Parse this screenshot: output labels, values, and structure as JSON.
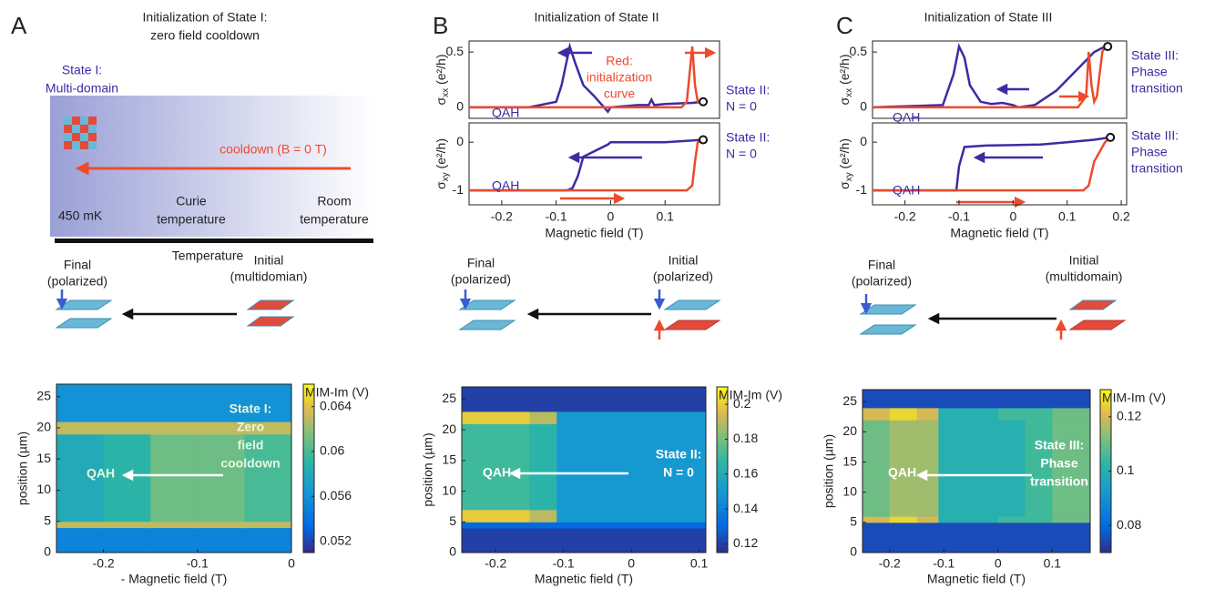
{
  "panels": {
    "A": {
      "letter": "A",
      "title": [
        "Initialization of State I:",
        "zero field cooldown"
      ],
      "state": [
        "State I:",
        "Multi-domain"
      ],
      "cooldown": "cooldown (B = 0 T)",
      "temps": [
        [
          "450 mK"
        ],
        [
          "Curie",
          "temperature"
        ],
        [
          "Room",
          "temperature"
        ]
      ],
      "axis": "Temperature",
      "final": [
        "Final",
        "(polarized)"
      ],
      "initial": [
        "Initial",
        "(multidomian)"
      ]
    },
    "B": {
      "letter": "B",
      "title": [
        "Initialization of State II"
      ],
      "final": [
        "Final",
        "(polarized)"
      ],
      "initial": [
        "Initial",
        "(polarized)"
      ]
    },
    "C": {
      "letter": "C",
      "title": [
        "Initialization of State III"
      ],
      "final": [
        "Final",
        "(polarized)"
      ],
      "initial": [
        "Initial",
        "(multidomain)"
      ]
    }
  },
  "chart_data": [
    {
      "type": "line",
      "ylabel": {
        "symbol": "σ",
        "sub": "xx",
        "unit": " (e²/h)"
      },
      "xlim": [
        -0.26,
        0.2
      ],
      "ylim": [
        -0.1,
        0.6
      ],
      "yticks": [
        0,
        0.5
      ],
      "series": [
        {
          "color": "#3f2aa3",
          "x": [
            0.17,
            0.15,
            0.1,
            0.08,
            0.075,
            0.07,
            0.05,
            0.0,
            -0.005,
            -0.03,
            -0.05,
            -0.065,
            -0.075,
            -0.09,
            -0.1,
            -0.15,
            -0.26
          ],
          "values": [
            0.05,
            0.04,
            0.03,
            0.02,
            0.07,
            0.02,
            0.02,
            0.0,
            -0.04,
            0.1,
            0.2,
            0.4,
            0.55,
            0.2,
            0.05,
            0.0,
            0.0
          ]
        },
        {
          "color": "#ee4a2c",
          "x": [
            -0.26,
            0.13,
            0.14,
            0.145,
            0.15,
            0.155,
            0.16,
            0.17
          ],
          "values": [
            0,
            0,
            0.05,
            0.3,
            0.55,
            0.2,
            0.05,
            0.05
          ]
        }
      ],
      "marker": [
        0.17,
        0.05
      ],
      "annotations": [
        {
          "text": [
            "QAH"
          ],
          "color": "#3f2aa3"
        },
        {
          "text": [
            "Red:",
            "initialization",
            "curve"
          ],
          "color": "#ee4a2c"
        },
        {
          "text": [
            "State II:",
            "N = 0"
          ],
          "color": "#3f2aa3"
        }
      ]
    },
    {
      "type": "line",
      "ylabel": {
        "symbol": "σ",
        "sub": "xy",
        "unit": " (e²/h)"
      },
      "xlabel": "Magnetic field (T)",
      "xlim": [
        -0.26,
        0.2
      ],
      "ylim": [
        -1.3,
        0.4
      ],
      "yticks": [
        -1,
        0
      ],
      "xticks": [
        -0.2,
        -0.1,
        0,
        0.1
      ],
      "series": [
        {
          "color": "#3f2aa3",
          "x": [
            0.17,
            0.1,
            0.0,
            -0.005,
            -0.05,
            -0.06,
            -0.07,
            -0.08,
            -0.26
          ],
          "values": [
            0.05,
            0.0,
            0.0,
            -0.05,
            -0.3,
            -0.7,
            -0.95,
            -1,
            -1
          ]
        },
        {
          "color": "#ee4a2c",
          "x": [
            -0.26,
            0.14,
            0.15,
            0.155,
            0.16,
            0.17
          ],
          "values": [
            -1,
            -1,
            -0.9,
            -0.4,
            0,
            0.05
          ]
        }
      ],
      "marker": [
        0.17,
        0.05
      ],
      "annotations": [
        {
          "text": [
            "QAH"
          ],
          "color": "#3f2aa3"
        },
        {
          "text": [
            "State II:",
            "N = 0"
          ],
          "color": "#3f2aa3"
        }
      ]
    },
    {
      "type": "line",
      "ylabel": {
        "symbol": "σ",
        "sub": "xx",
        "unit": " (e²/h)"
      },
      "xlim": [
        -0.26,
        0.21
      ],
      "ylim": [
        -0.1,
        0.6
      ],
      "yticks": [
        0,
        0.5
      ],
      "series": [
        {
          "color": "#3f2aa3",
          "x": [
            0.17,
            0.15,
            0.12,
            0.08,
            0.04,
            0.01,
            0,
            -0.02,
            -0.04,
            -0.06,
            -0.08,
            -0.09,
            -0.1,
            -0.11,
            -0.13,
            -0.26
          ],
          "values": [
            0.55,
            0.5,
            0.35,
            0.15,
            0.02,
            0,
            0.02,
            0.04,
            0.03,
            0.05,
            0.2,
            0.45,
            0.55,
            0.3,
            0.02,
            0
          ]
        },
        {
          "color": "#ee4a2c",
          "x": [
            -0.26,
            0.12,
            0.135,
            0.14,
            0.145,
            0.15,
            0.155,
            0.165,
            0.17,
            0.175
          ],
          "values": [
            0,
            0,
            0.1,
            0.5,
            0.2,
            0.05,
            0.1,
            0.5,
            0.55,
            0.55
          ]
        }
      ],
      "marker": [
        0.175,
        0.55
      ],
      "annotations": [
        {
          "text": [
            "QAH"
          ],
          "color": "#3f2aa3"
        },
        {
          "text": [
            "State III:",
            "Phase",
            "transition"
          ],
          "color": "#3f2aa3"
        }
      ]
    },
    {
      "type": "line",
      "ylabel": {
        "symbol": "σ",
        "sub": "xy",
        "unit": " (e²/h)"
      },
      "xlabel": "Magnetic field (T)",
      "xlim": [
        -0.26,
        0.21
      ],
      "ylim": [
        -1.3,
        0.4
      ],
      "yticks": [
        -1,
        0
      ],
      "xticks": [
        -0.2,
        -0.1,
        0,
        0.1,
        0.2
      ],
      "series": [
        {
          "color": "#3f2aa3",
          "x": [
            0.18,
            0.15,
            0.1,
            0.05,
            0,
            -0.05,
            -0.09,
            -0.1,
            -0.105,
            -0.26
          ],
          "values": [
            0.1,
            0.05,
            0.0,
            -0.05,
            -0.06,
            -0.07,
            -0.1,
            -0.5,
            -1,
            -1
          ]
        },
        {
          "color": "#ee4a2c",
          "x": [
            -0.26,
            0.13,
            0.14,
            0.15,
            0.16,
            0.17,
            0.18
          ],
          "values": [
            -1,
            -1,
            -0.9,
            -0.4,
            -0.2,
            0,
            0.1
          ]
        }
      ],
      "marker": [
        0.18,
        0.1
      ],
      "annotations": [
        {
          "text": [
            "QAH"
          ],
          "color": "#3f2aa3"
        },
        {
          "text": [
            "State III:",
            "Phase",
            "transition"
          ],
          "color": "#3f2aa3"
        }
      ]
    },
    {
      "type": "heatmap",
      "xlabel": "- Magnetic field (T)",
      "ylabel": "position (µm)",
      "xlim": [
        -0.25,
        0
      ],
      "ylim": [
        0,
        27
      ],
      "xticks": [
        -0.2,
        -0.1,
        0
      ],
      "yticks": [
        0,
        5,
        10,
        15,
        20,
        25
      ],
      "x_edges": [
        -0.25,
        -0.2,
        -0.15,
        -0.1,
        -0.05,
        0
      ],
      "y_edges": [
        0,
        4,
        5,
        19,
        21,
        27
      ],
      "z": [
        [
          0.055,
          0.055,
          0.055,
          0.055,
          0.055
        ],
        [
          0.063,
          0.063,
          0.063,
          0.063,
          0.063
        ],
        [
          0.058,
          0.059,
          0.061,
          0.061,
          0.06
        ],
        [
          0.063,
          0.063,
          0.063,
          0.063,
          0.063
        ],
        [
          0.056,
          0.056,
          0.056,
          0.056,
          0.056
        ]
      ],
      "zlim": [
        0.051,
        0.066
      ],
      "zticks": [
        0.052,
        0.056,
        0.06,
        0.064
      ],
      "colorbar_label": "MIM-Im (V)",
      "annotations": [
        {
          "text": [
            "QAH"
          ],
          "color": "#e8f7e0"
        },
        {
          "text": [
            "State I:",
            "Zero",
            "field",
            "cooldown"
          ],
          "color": "#e8f7e0"
        }
      ]
    },
    {
      "type": "heatmap",
      "xlabel": "Magnetic field (T)",
      "ylabel": "position (µm)",
      "xlim": [
        -0.25,
        0.11
      ],
      "ylim": [
        0,
        27
      ],
      "xticks": [
        -0.2,
        -0.1,
        0,
        0.1
      ],
      "yticks": [
        0,
        5,
        10,
        15,
        20,
        25
      ],
      "x_edges": [
        -0.25,
        -0.2,
        -0.15,
        -0.11,
        -0.1,
        0.0,
        0.11
      ],
      "y_edges": [
        0,
        4,
        5,
        7,
        21,
        23,
        27
      ],
      "z": [
        [
          0.12,
          0.12,
          0.12,
          0.12,
          0.12,
          0.12
        ],
        [
          0.13,
          0.13,
          0.13,
          0.13,
          0.13,
          0.13
        ],
        [
          0.2,
          0.2,
          0.19,
          0.15,
          0.15,
          0.15
        ],
        [
          0.17,
          0.17,
          0.165,
          0.15,
          0.15,
          0.15
        ],
        [
          0.2,
          0.2,
          0.19,
          0.15,
          0.15,
          0.15
        ],
        [
          0.12,
          0.12,
          0.12,
          0.12,
          0.12,
          0.12
        ]
      ],
      "zlim": [
        0.115,
        0.21
      ],
      "zticks": [
        0.12,
        0.14,
        0.16,
        0.18,
        0.2
      ],
      "colorbar_label": "MIM-Im (V)",
      "annotations": [
        {
          "text": [
            "QAH"
          ],
          "color": "#ffffff"
        },
        {
          "text": [
            "State II:",
            "N = 0"
          ],
          "color": "#ffffff"
        }
      ]
    },
    {
      "type": "heatmap",
      "xlabel": "Magnetic field (T)",
      "ylabel": "position (µm)",
      "xlim": [
        -0.25,
        0.17
      ],
      "ylim": [
        0,
        27
      ],
      "xticks": [
        -0.2,
        -0.1,
        0,
        0.1
      ],
      "yticks": [
        0,
        5,
        10,
        15,
        20,
        25
      ],
      "x_edges": [
        -0.25,
        -0.2,
        -0.15,
        -0.11,
        -0.1,
        0,
        0.05,
        0.1,
        0.17
      ],
      "y_edges": [
        0,
        5,
        6,
        22,
        24,
        27
      ],
      "z": [
        [
          0.075,
          0.075,
          0.075,
          0.075,
          0.075,
          0.075,
          0.075,
          0.075
        ],
        [
          0.12,
          0.125,
          0.12,
          0.1,
          0.1,
          0.105,
          0.105,
          0.11
        ],
        [
          0.11,
          0.115,
          0.115,
          0.1,
          0.1,
          0.1,
          0.105,
          0.11
        ],
        [
          0.12,
          0.125,
          0.12,
          0.1,
          0.1,
          0.105,
          0.105,
          0.11
        ],
        [
          0.075,
          0.075,
          0.075,
          0.075,
          0.075,
          0.075,
          0.075,
          0.075
        ]
      ],
      "zlim": [
        0.07,
        0.13
      ],
      "zticks": [
        0.08,
        0.1,
        0.12
      ],
      "colorbar_label": "MIM-Im (V)",
      "annotations": [
        {
          "text": [
            "QAH"
          ],
          "color": "#ffffff"
        },
        {
          "text": [
            "State III:",
            "Phase",
            "transition"
          ],
          "color": "#ffffff"
        }
      ]
    }
  ]
}
